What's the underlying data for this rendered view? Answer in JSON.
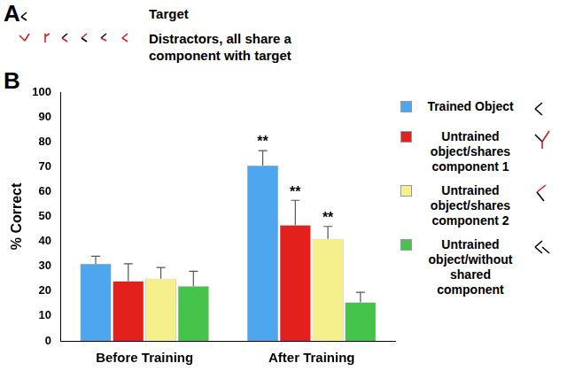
{
  "chart_data": {
    "type": "bar",
    "panel_labels": [
      "A",
      "B"
    ],
    "panel_a": {
      "target_label": "Target",
      "distractors_label": "Distractors, all share a component with target"
    },
    "categories": [
      "Before Training",
      "After Training"
    ],
    "y_label": "% Correct",
    "ylim": [
      0,
      100
    ],
    "yticks": [
      0,
      10,
      20,
      30,
      40,
      50,
      60,
      70,
      80,
      90,
      100
    ],
    "grid": false,
    "legend": "right",
    "series": [
      {
        "name": "Trained Object",
        "color": "#4da6ee",
        "values": [
          31,
          70.5
        ],
        "errors": [
          3,
          6
        ],
        "annotations": [
          null,
          "**"
        ]
      },
      {
        "name": "Untrained object/shares component 1",
        "color": "#e3211c",
        "values": [
          24,
          46.5
        ],
        "errors": [
          7,
          10
        ],
        "annotations": [
          null,
          "**"
        ]
      },
      {
        "name": "Untrained object/shares component 2",
        "color": "#f5f08c",
        "values": [
          25,
          41
        ],
        "errors": [
          4.5,
          5
        ],
        "annotations": [
          null,
          "**"
        ]
      },
      {
        "name": "Untrained object/without shared component",
        "color": "#46c34b",
        "values": [
          22,
          15.5
        ],
        "errors": [
          6,
          4
        ],
        "annotations": [
          null,
          null
        ]
      }
    ]
  }
}
